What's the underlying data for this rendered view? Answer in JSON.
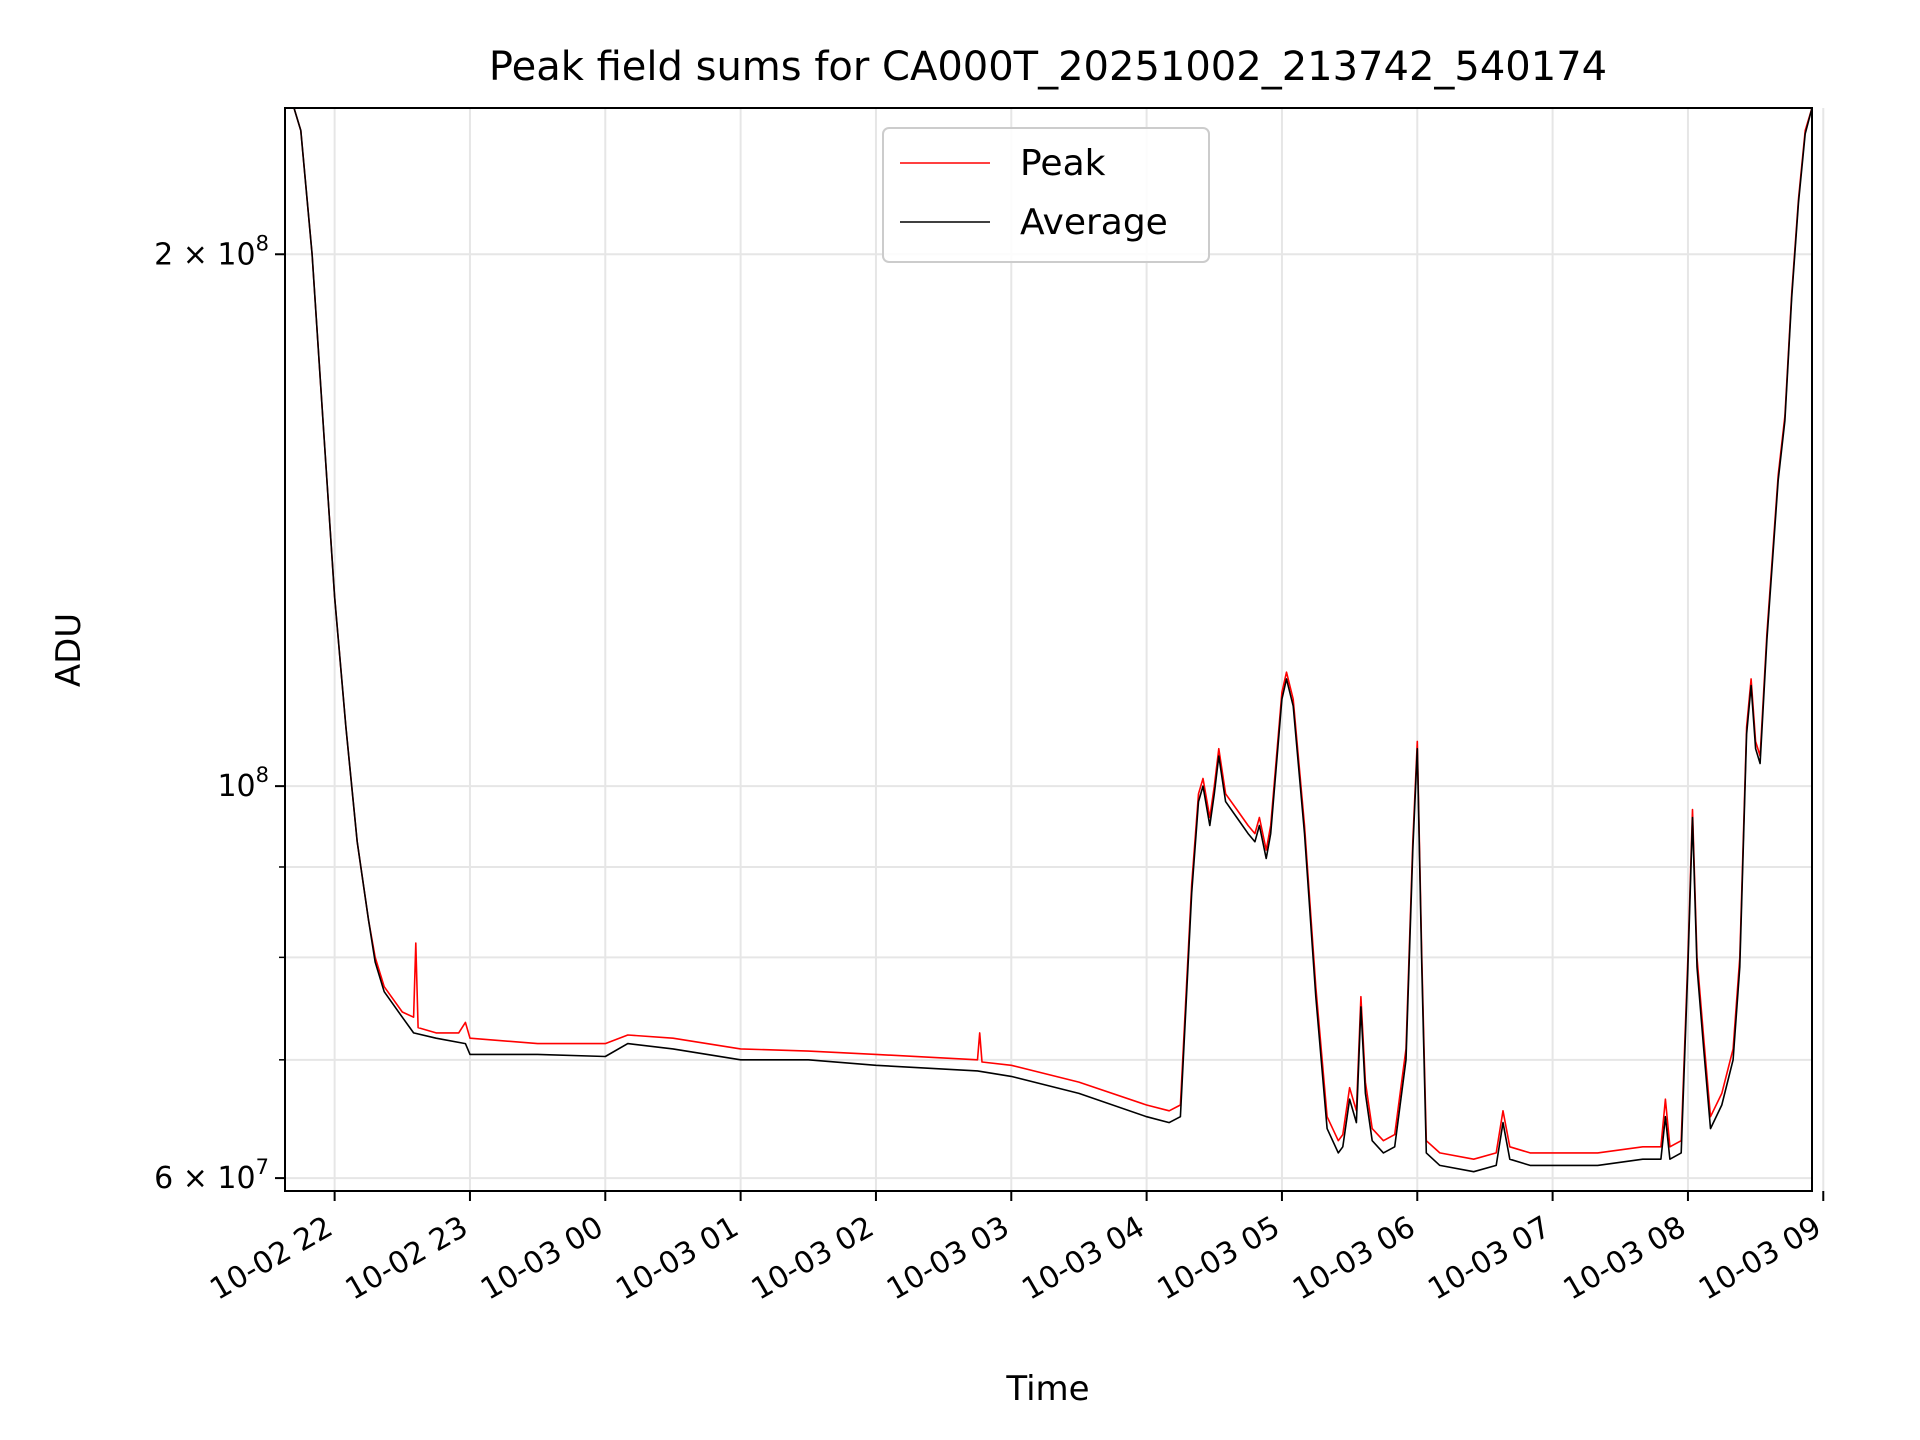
{
  "chart_data": {
    "type": "line",
    "title": "Peak field sums for CA000T_20251002_213742_540174",
    "xlabel": "Time",
    "ylabel": "ADU",
    "yscale": "log",
    "ylim": [
      59000000,
      242000000
    ],
    "xlim": [
      "2025-10-02 21:38",
      "2025-10-03 08:55"
    ],
    "grid": true,
    "legend_position": "top-center",
    "x_ticks": [
      {
        "t": "2025-10-02 22:00",
        "label": "10-02 22"
      },
      {
        "t": "2025-10-02 23:00",
        "label": "10-02 23"
      },
      {
        "t": "2025-10-03 00:00",
        "label": "10-03 00"
      },
      {
        "t": "2025-10-03 01:00",
        "label": "10-03 01"
      },
      {
        "t": "2025-10-03 02:00",
        "label": "10-03 02"
      },
      {
        "t": "2025-10-03 03:00",
        "label": "10-03 03"
      },
      {
        "t": "2025-10-03 04:00",
        "label": "10-03 04"
      },
      {
        "t": "2025-10-03 05:00",
        "label": "10-03 05"
      },
      {
        "t": "2025-10-03 06:00",
        "label": "10-03 06"
      },
      {
        "t": "2025-10-03 07:00",
        "label": "10-03 07"
      },
      {
        "t": "2025-10-03 08:00",
        "label": "10-03 08"
      },
      {
        "t": "2025-10-03 09:00",
        "label": "10-03 09"
      }
    ],
    "y_major_ticks": [
      {
        "value": 60000000,
        "mant": "6",
        "exp": "7",
        "label": "6 × 10^7"
      },
      {
        "value": 100000000,
        "mant": "",
        "exp": "8",
        "label": "10^8"
      },
      {
        "value": 200000000,
        "mant": "2",
        "exp": "8",
        "label": "2 × 10^8"
      }
    ],
    "y_minor_ticks": [
      70000000,
      80000000,
      90000000
    ],
    "series": [
      {
        "name": "Peak",
        "color": "#ff0000",
        "points": [
          [
            "2025-10-02 21:38",
            242000000
          ],
          [
            "2025-10-02 21:42",
            242000000
          ],
          [
            "2025-10-02 21:45",
            235000000
          ],
          [
            "2025-10-02 21:50",
            200000000
          ],
          [
            "2025-10-02 21:55",
            160000000
          ],
          [
            "2025-10-02 22:00",
            128000000
          ],
          [
            "2025-10-02 22:05",
            108000000
          ],
          [
            "2025-10-02 22:10",
            93000000
          ],
          [
            "2025-10-02 22:15",
            84000000
          ],
          [
            "2025-10-02 22:18",
            80000000
          ],
          [
            "2025-10-02 22:22",
            77000000
          ],
          [
            "2025-10-02 22:30",
            74500000
          ],
          [
            "2025-10-02 22:35",
            74000000
          ],
          [
            "2025-10-02 22:36",
            81500000
          ],
          [
            "2025-10-02 22:37",
            73000000
          ],
          [
            "2025-10-02 22:45",
            72500000
          ],
          [
            "2025-10-02 22:55",
            72500000
          ],
          [
            "2025-10-02 22:58",
            73500000
          ],
          [
            "2025-10-02 23:00",
            72000000
          ],
          [
            "2025-10-02 23:30",
            71500000
          ],
          [
            "2025-10-03 00:00",
            71500000
          ],
          [
            "2025-10-03 00:10",
            72300000
          ],
          [
            "2025-10-03 00:30",
            72000000
          ],
          [
            "2025-10-03 01:00",
            71000000
          ],
          [
            "2025-10-03 01:30",
            70800000
          ],
          [
            "2025-10-03 02:00",
            70500000
          ],
          [
            "2025-10-03 02:45",
            70000000
          ],
          [
            "2025-10-03 02:46",
            72500000
          ],
          [
            "2025-10-03 02:47",
            69800000
          ],
          [
            "2025-10-03 03:00",
            69500000
          ],
          [
            "2025-10-03 03:30",
            68000000
          ],
          [
            "2025-10-03 04:00",
            66000000
          ],
          [
            "2025-10-03 04:10",
            65500000
          ],
          [
            "2025-10-03 04:15",
            66000000
          ],
          [
            "2025-10-03 04:20",
            88000000
          ],
          [
            "2025-10-03 04:23",
            99000000
          ],
          [
            "2025-10-03 04:25",
            101000000
          ],
          [
            "2025-10-03 04:28",
            96000000
          ],
          [
            "2025-10-03 04:30",
            100000000
          ],
          [
            "2025-10-03 04:32",
            105000000
          ],
          [
            "2025-10-03 04:35",
            99000000
          ],
          [
            "2025-10-03 04:40",
            97000000
          ],
          [
            "2025-10-03 04:45",
            95000000
          ],
          [
            "2025-10-03 04:48",
            94000000
          ],
          [
            "2025-10-03 04:50",
            96000000
          ],
          [
            "2025-10-03 04:53",
            92000000
          ],
          [
            "2025-10-03 04:55",
            95000000
          ],
          [
            "2025-10-03 05:00",
            113000000
          ],
          [
            "2025-10-03 05:02",
            116000000
          ],
          [
            "2025-10-03 05:05",
            112000000
          ],
          [
            "2025-10-03 05:10",
            95000000
          ],
          [
            "2025-10-03 05:15",
            77000000
          ],
          [
            "2025-10-03 05:20",
            65000000
          ],
          [
            "2025-10-03 05:25",
            63000000
          ],
          [
            "2025-10-03 05:27",
            63500000
          ],
          [
            "2025-10-03 05:30",
            67500000
          ],
          [
            "2025-10-03 05:33",
            65500000
          ],
          [
            "2025-10-03 05:35",
            76000000
          ],
          [
            "2025-10-03 05:37",
            68000000
          ],
          [
            "2025-10-03 05:40",
            64000000
          ],
          [
            "2025-10-03 05:45",
            63000000
          ],
          [
            "2025-10-03 05:50",
            63500000
          ],
          [
            "2025-10-03 05:55",
            71000000
          ],
          [
            "2025-10-03 05:58",
            93000000
          ],
          [
            "2025-10-03 06:00",
            106000000
          ],
          [
            "2025-10-03 06:02",
            80000000
          ],
          [
            "2025-10-03 06:04",
            63000000
          ],
          [
            "2025-10-03 06:10",
            62000000
          ],
          [
            "2025-10-03 06:25",
            61500000
          ],
          [
            "2025-10-03 06:35",
            62000000
          ],
          [
            "2025-10-03 06:38",
            65500000
          ],
          [
            "2025-10-03 06:41",
            62500000
          ],
          [
            "2025-10-03 06:50",
            62000000
          ],
          [
            "2025-10-03 07:20",
            62000000
          ],
          [
            "2025-10-03 07:40",
            62500000
          ],
          [
            "2025-10-03 07:48",
            62500000
          ],
          [
            "2025-10-03 07:50",
            66500000
          ],
          [
            "2025-10-03 07:52",
            62500000
          ],
          [
            "2025-10-03 07:57",
            63000000
          ],
          [
            "2025-10-03 08:00",
            80000000
          ],
          [
            "2025-10-03 08:02",
            97000000
          ],
          [
            "2025-10-03 08:04",
            80000000
          ],
          [
            "2025-10-03 08:07",
            72000000
          ],
          [
            "2025-10-03 08:10",
            65000000
          ],
          [
            "2025-10-03 08:15",
            67000000
          ],
          [
            "2025-10-03 08:20",
            71000000
          ],
          [
            "2025-10-03 08:23",
            80000000
          ],
          [
            "2025-10-03 08:26",
            108000000
          ],
          [
            "2025-10-03 08:28",
            115000000
          ],
          [
            "2025-10-03 08:30",
            106000000
          ],
          [
            "2025-10-03 08:32",
            104000000
          ],
          [
            "2025-10-03 08:35",
            122000000
          ],
          [
            "2025-10-03 08:40",
            150000000
          ],
          [
            "2025-10-03 08:43",
            162000000
          ],
          [
            "2025-10-03 08:46",
            190000000
          ],
          [
            "2025-10-03 08:49",
            215000000
          ],
          [
            "2025-10-03 08:52",
            235000000
          ],
          [
            "2025-10-03 08:55",
            242000000
          ]
        ]
      },
      {
        "name": "Average",
        "color": "#000000",
        "points": [
          [
            "2025-10-02 21:38",
            242000000
          ],
          [
            "2025-10-02 21:42",
            242000000
          ],
          [
            "2025-10-02 21:45",
            235000000
          ],
          [
            "2025-10-02 21:50",
            200000000
          ],
          [
            "2025-10-02 21:55",
            160000000
          ],
          [
            "2025-10-02 22:00",
            128000000
          ],
          [
            "2025-10-02 22:05",
            108000000
          ],
          [
            "2025-10-02 22:10",
            93000000
          ],
          [
            "2025-10-02 22:15",
            84000000
          ],
          [
            "2025-10-02 22:18",
            79500000
          ],
          [
            "2025-10-02 22:22",
            76500000
          ],
          [
            "2025-10-02 22:30",
            74000000
          ],
          [
            "2025-10-02 22:35",
            72500000
          ],
          [
            "2025-10-02 22:45",
            72000000
          ],
          [
            "2025-10-02 22:58",
            71500000
          ],
          [
            "2025-10-02 23:00",
            70500000
          ],
          [
            "2025-10-02 23:30",
            70500000
          ],
          [
            "2025-10-03 00:00",
            70300000
          ],
          [
            "2025-10-03 00:10",
            71500000
          ],
          [
            "2025-10-03 00:30",
            71000000
          ],
          [
            "2025-10-03 01:00",
            70000000
          ],
          [
            "2025-10-03 01:30",
            70000000
          ],
          [
            "2025-10-03 02:00",
            69500000
          ],
          [
            "2025-10-03 02:45",
            69000000
          ],
          [
            "2025-10-03 03:00",
            68500000
          ],
          [
            "2025-10-03 03:30",
            67000000
          ],
          [
            "2025-10-03 04:00",
            65000000
          ],
          [
            "2025-10-03 04:10",
            64500000
          ],
          [
            "2025-10-03 04:15",
            65000000
          ],
          [
            "2025-10-03 04:20",
            87000000
          ],
          [
            "2025-10-03 04:23",
            98000000
          ],
          [
            "2025-10-03 04:25",
            100000000
          ],
          [
            "2025-10-03 04:28",
            95000000
          ],
          [
            "2025-10-03 04:30",
            99000000
          ],
          [
            "2025-10-03 04:32",
            104000000
          ],
          [
            "2025-10-03 04:35",
            98000000
          ],
          [
            "2025-10-03 04:40",
            96000000
          ],
          [
            "2025-10-03 04:45",
            94000000
          ],
          [
            "2025-10-03 04:48",
            93000000
          ],
          [
            "2025-10-03 04:50",
            95000000
          ],
          [
            "2025-10-03 04:53",
            91000000
          ],
          [
            "2025-10-03 04:55",
            94000000
          ],
          [
            "2025-10-03 05:00",
            112000000
          ],
          [
            "2025-10-03 05:02",
            115000000
          ],
          [
            "2025-10-03 05:05",
            111000000
          ],
          [
            "2025-10-03 05:10",
            94000000
          ],
          [
            "2025-10-03 05:15",
            76000000
          ],
          [
            "2025-10-03 05:20",
            64000000
          ],
          [
            "2025-10-03 05:25",
            62000000
          ],
          [
            "2025-10-03 05:27",
            62500000
          ],
          [
            "2025-10-03 05:30",
            66500000
          ],
          [
            "2025-10-03 05:33",
            64500000
          ],
          [
            "2025-10-03 05:35",
            75000000
          ],
          [
            "2025-10-03 05:37",
            67000000
          ],
          [
            "2025-10-03 05:40",
            63000000
          ],
          [
            "2025-10-03 05:45",
            62000000
          ],
          [
            "2025-10-03 05:50",
            62500000
          ],
          [
            "2025-10-03 05:55",
            70000000
          ],
          [
            "2025-10-03 05:58",
            92000000
          ],
          [
            "2025-10-03 06:00",
            105000000
          ],
          [
            "2025-10-03 06:02",
            79000000
          ],
          [
            "2025-10-03 06:04",
            62000000
          ],
          [
            "2025-10-03 06:10",
            61000000
          ],
          [
            "2025-10-03 06:25",
            60500000
          ],
          [
            "2025-10-03 06:35",
            61000000
          ],
          [
            "2025-10-03 06:38",
            64500000
          ],
          [
            "2025-10-03 06:41",
            61500000
          ],
          [
            "2025-10-03 06:50",
            61000000
          ],
          [
            "2025-10-03 07:20",
            61000000
          ],
          [
            "2025-10-03 07:40",
            61500000
          ],
          [
            "2025-10-03 07:48",
            61500000
          ],
          [
            "2025-10-03 07:50",
            65000000
          ],
          [
            "2025-10-03 07:52",
            61500000
          ],
          [
            "2025-10-03 07:57",
            62000000
          ],
          [
            "2025-10-03 08:00",
            79000000
          ],
          [
            "2025-10-03 08:02",
            96000000
          ],
          [
            "2025-10-03 08:04",
            79000000
          ],
          [
            "2025-10-03 08:07",
            71000000
          ],
          [
            "2025-10-03 08:10",
            64000000
          ],
          [
            "2025-10-03 08:15",
            66000000
          ],
          [
            "2025-10-03 08:20",
            70000000
          ],
          [
            "2025-10-03 08:23",
            79000000
          ],
          [
            "2025-10-03 08:26",
            107000000
          ],
          [
            "2025-10-03 08:28",
            114000000
          ],
          [
            "2025-10-03 08:30",
            105000000
          ],
          [
            "2025-10-03 08:32",
            103000000
          ],
          [
            "2025-10-03 08:35",
            121000000
          ],
          [
            "2025-10-03 08:40",
            149000000
          ],
          [
            "2025-10-03 08:43",
            161000000
          ],
          [
            "2025-10-03 08:46",
            189000000
          ],
          [
            "2025-10-03 08:49",
            214000000
          ],
          [
            "2025-10-03 08:52",
            234000000
          ],
          [
            "2025-10-03 08:55",
            242000000
          ]
        ]
      }
    ]
  }
}
